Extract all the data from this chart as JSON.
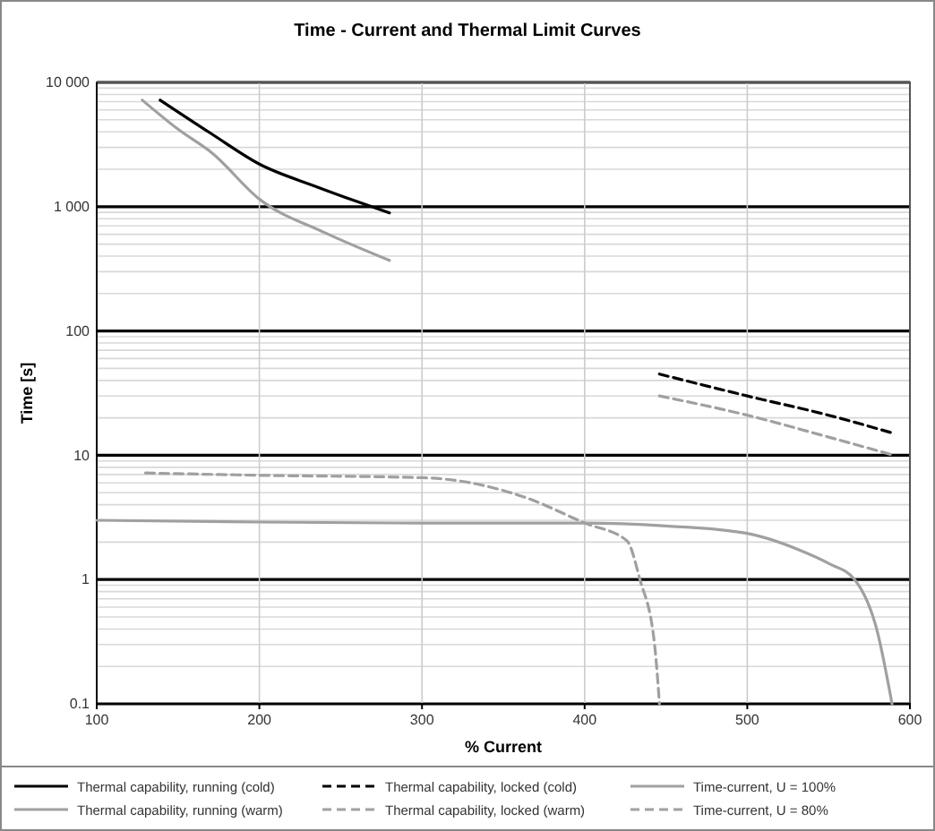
{
  "chart_data": {
    "type": "line",
    "title": "Time - Current and Thermal Limit Curves",
    "xlabel": "% Current",
    "ylabel": "Time [s]",
    "log": "y",
    "grid": true,
    "legend": "bottom",
    "xlim": [
      100,
      600
    ],
    "xticks": [
      100,
      200,
      300,
      400,
      500,
      600
    ],
    "ylim": [
      0.1,
      10000
    ],
    "yticks": [
      {
        "value": 0.1,
        "label": "0.1"
      },
      {
        "value": 0.2,
        "label": null
      },
      {
        "value": 0.3,
        "label": null
      },
      {
        "value": 0.4,
        "label": null
      },
      {
        "value": 0.5,
        "label": null
      },
      {
        "value": 0.6,
        "label": null
      },
      {
        "value": 0.7,
        "label": null
      },
      {
        "value": 0.8,
        "label": null
      },
      {
        "value": 0.9,
        "label": null
      },
      {
        "value": 1,
        "label": "1"
      },
      {
        "value": 2,
        "label": null
      },
      {
        "value": 3,
        "label": null
      },
      {
        "value": 4,
        "label": null
      },
      {
        "value": 5,
        "label": null
      },
      {
        "value": 6,
        "label": null
      },
      {
        "value": 7,
        "label": null
      },
      {
        "value": 8,
        "label": null
      },
      {
        "value": 9,
        "label": null
      },
      {
        "value": 10,
        "label": "10"
      },
      {
        "value": 20,
        "label": null
      },
      {
        "value": 30,
        "label": null
      },
      {
        "value": 40,
        "label": null
      },
      {
        "value": 50,
        "label": null
      },
      {
        "value": 60,
        "label": null
      },
      {
        "value": 70,
        "label": null
      },
      {
        "value": 80,
        "label": null
      },
      {
        "value": 90,
        "label": null
      },
      {
        "value": 100,
        "label": "100"
      },
      {
        "value": 200,
        "label": null
      },
      {
        "value": 300,
        "label": null
      },
      {
        "value": 400,
        "label": null
      },
      {
        "value": 500,
        "label": null
      },
      {
        "value": 600,
        "label": null
      },
      {
        "value": 700,
        "label": null
      },
      {
        "value": 800,
        "label": null
      },
      {
        "value": 900,
        "label": null
      },
      {
        "value": 1000,
        "label": "1 000"
      },
      {
        "value": 2000,
        "label": null
      },
      {
        "value": 3000,
        "label": null
      },
      {
        "value": 4000,
        "label": null
      },
      {
        "value": 5000,
        "label": null
      },
      {
        "value": 6000,
        "label": null
      },
      {
        "value": 7000,
        "label": null
      },
      {
        "value": 8000,
        "label": null
      },
      {
        "value": 9000,
        "label": null
      },
      {
        "value": 10000,
        "label": "10 000"
      }
    ],
    "series": [
      {
        "name": "Thermal capability, running (cold)",
        "color": "#000000",
        "line_style": "solid",
        "x": [
          139,
          170,
          200,
          235,
          260,
          280
        ],
        "values": [
          7200,
          3900,
          2200,
          1450,
          1100,
          890
        ]
      },
      {
        "name": "Thermal capability, running (warm)",
        "color": "#a0a0a0",
        "line_style": "solid",
        "x": [
          128,
          150,
          171,
          200,
          240,
          280
        ],
        "values": [
          7200,
          4200,
          2700,
          1150,
          620,
          370
        ]
      },
      {
        "name": "Thermal capability, locked (cold)",
        "color": "#000000",
        "line_style": "dashed",
        "x": [
          446,
          500,
          550,
          590
        ],
        "values": [
          45,
          30,
          21,
          15
        ]
      },
      {
        "name": "Thermal capability, locked (warm)",
        "color": "#a0a0a0",
        "line_style": "dashed",
        "x": [
          446,
          500,
          550,
          590
        ],
        "values": [
          30,
          21,
          14,
          10
        ]
      },
      {
        "name": "Time-current, U = 100%",
        "color": "#a0a0a0",
        "line_style": "solid",
        "x": [
          100,
          200,
          300,
          400,
          450,
          500,
          531,
          550,
          566,
          580,
          589
        ],
        "values": [
          3.0,
          2.9,
          2.85,
          2.85,
          2.7,
          2.35,
          1.75,
          1.35,
          1.0,
          0.38,
          0.1
        ]
      },
      {
        "name": "Time-current, U = 80%",
        "color": "#a0a0a0",
        "line_style": "dashed",
        "x": [
          130,
          200,
          300,
          330,
          365,
          400,
          426,
          434,
          443,
          446
        ],
        "values": [
          7.2,
          6.9,
          6.6,
          6.0,
          4.5,
          2.85,
          2.05,
          1.0,
          0.3,
          0.1
        ]
      }
    ]
  }
}
